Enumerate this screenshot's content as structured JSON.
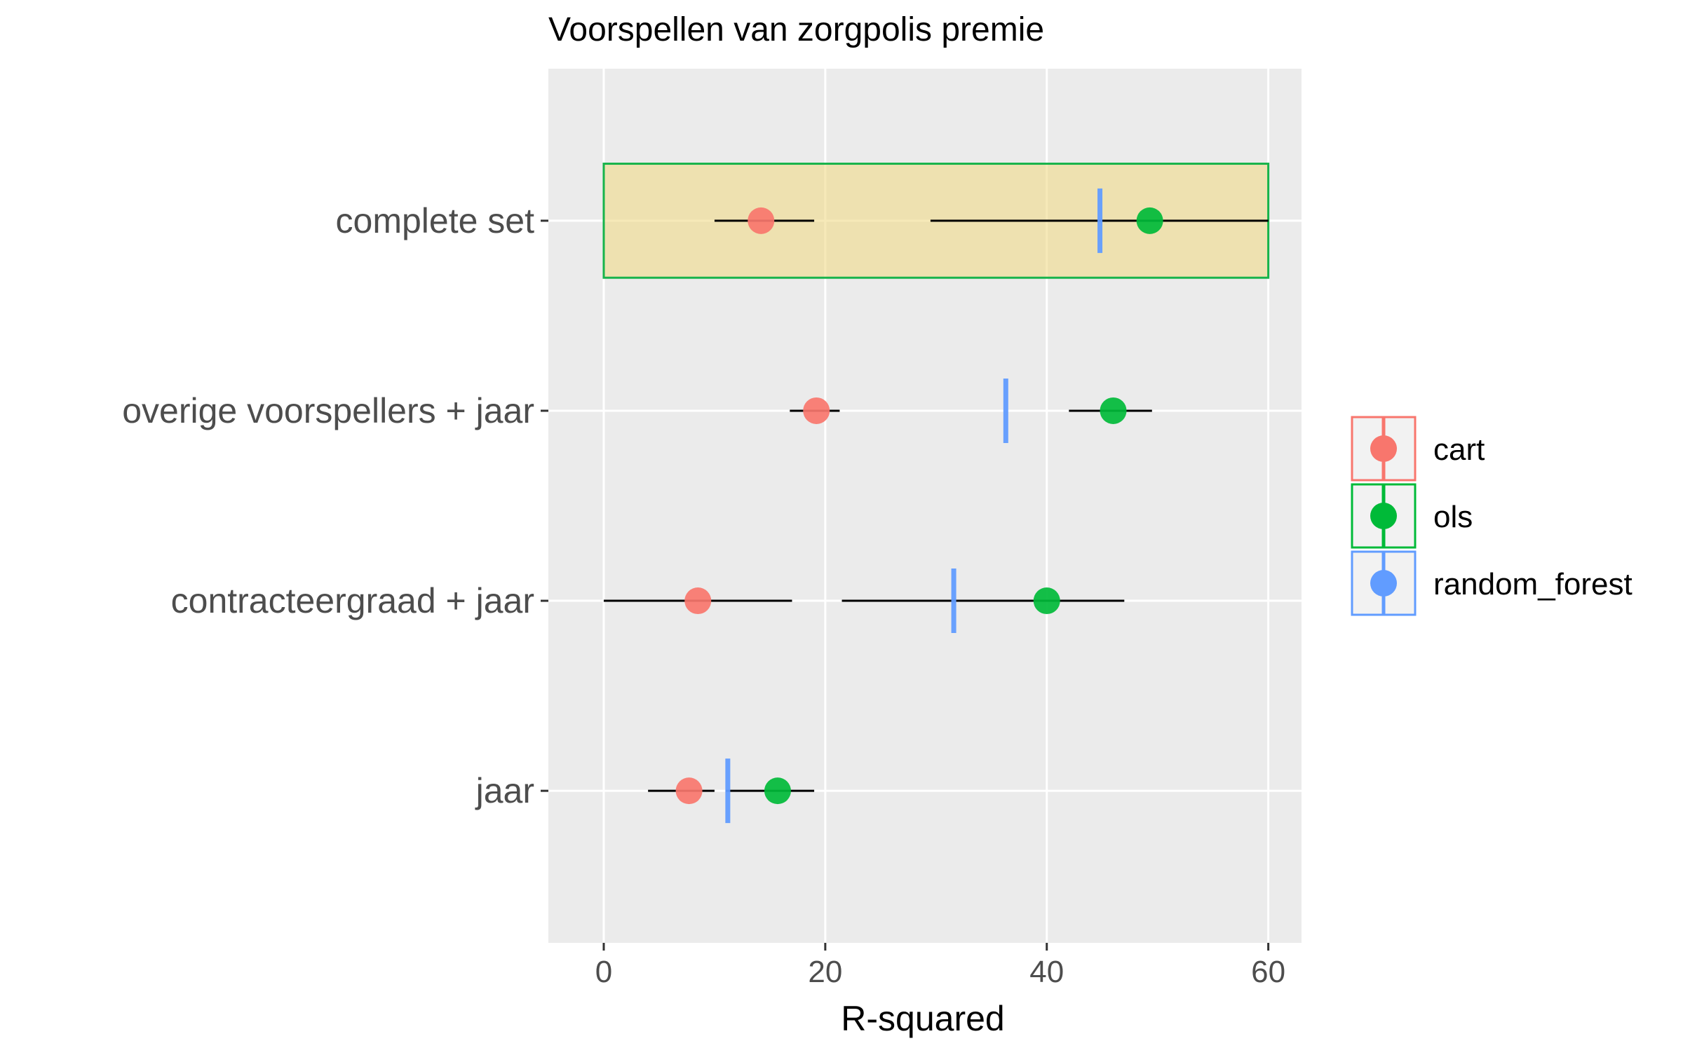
{
  "chart_data": {
    "type": "scatter",
    "title": "Voorspellen van zorgpolis premie",
    "xlabel": "R-squared",
    "ylabel": "",
    "xlim": [
      -5,
      63
    ],
    "x_ticks": [
      0,
      20,
      40,
      60
    ],
    "x_tick_labels": [
      "0",
      "20",
      "40",
      "60"
    ],
    "categories": [
      "complete set",
      "overige voorspellers + jaar",
      "contracteergraad + jaar",
      "jaar"
    ],
    "legend": {
      "position": "right",
      "entries": [
        "cart",
        "ols",
        "random_forest"
      ]
    },
    "grid": true,
    "colors": {
      "cart": "#F8766D",
      "ols": "#00BA38",
      "random_forest": "#619CFF",
      "highlight_fill": "#F0DC8C",
      "highlight_border": "#17B34A",
      "panel": "#EBEBEB",
      "interval": "#000000"
    },
    "series": [
      {
        "name": "cart",
        "marker": "point",
        "values": [
          {
            "category": "complete set",
            "x": 14.2,
            "low": 10.0,
            "high": 19.0
          },
          {
            "category": "overige voorspellers + jaar",
            "x": 19.2,
            "low": 16.8,
            "high": 21.3
          },
          {
            "category": "contracteergraad + jaar",
            "x": 8.5,
            "low": 0.0,
            "high": 17.0
          },
          {
            "category": "jaar",
            "x": 7.7,
            "low": 4.0,
            "high": 10.0
          }
        ]
      },
      {
        "name": "ols",
        "marker": "point",
        "values": [
          {
            "category": "complete set",
            "x": 49.3,
            "low": 29.5,
            "high": 60.0
          },
          {
            "category": "overige voorspellers + jaar",
            "x": 46.0,
            "low": 42.0,
            "high": 49.5
          },
          {
            "category": "contracteergraad + jaar",
            "x": 40.0,
            "low": 21.5,
            "high": 47.0
          },
          {
            "category": "jaar",
            "x": 15.7,
            "low": 11.0,
            "high": 19.0
          }
        ]
      },
      {
        "name": "random_forest",
        "marker": "vline",
        "values": [
          {
            "category": "complete set",
            "x": 44.8
          },
          {
            "category": "overige voorspellers + jaar",
            "x": 36.3
          },
          {
            "category": "contracteergraad + jaar",
            "x": 31.6
          },
          {
            "category": "jaar",
            "x": 11.2
          }
        ]
      }
    ],
    "highlight": {
      "category": "complete set",
      "x_range": [
        0,
        60
      ]
    }
  }
}
